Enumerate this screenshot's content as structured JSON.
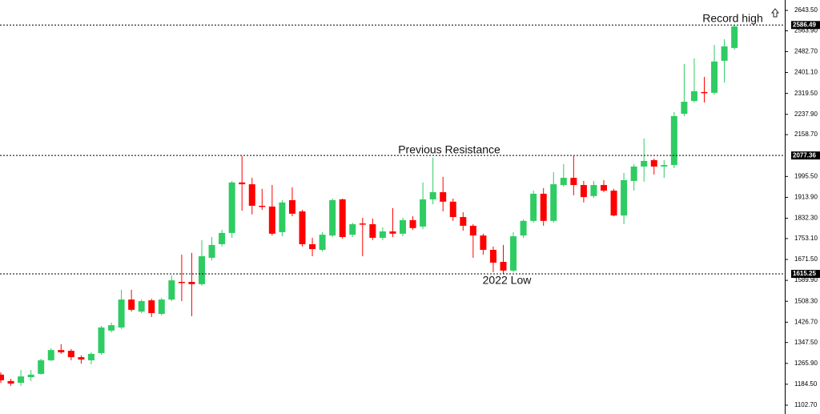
{
  "chart_data": {
    "type": "candlestick",
    "up_color": "#2ecc63",
    "down_color": "#ff0000",
    "ylim": [
      1102.7,
      2643.5
    ],
    "yticks": [
      {
        "value": 2643.5,
        "label": "2643.50"
      },
      {
        "value": 2563.9,
        "label": "2563.90"
      },
      {
        "value": 2482.7,
        "label": "2482.70"
      },
      {
        "value": 2401.1,
        "label": "2401.10"
      },
      {
        "value": 2319.5,
        "label": "2319.50"
      },
      {
        "value": 2237.9,
        "label": "2237.90"
      },
      {
        "value": 2158.7,
        "label": "2158.70"
      },
      {
        "value": 1995.5,
        "label": "1995.50"
      },
      {
        "value": 1913.9,
        "label": "1913.90"
      },
      {
        "value": 1832.3,
        "label": "1832.30"
      },
      {
        "value": 1753.1,
        "label": "1753.10"
      },
      {
        "value": 1671.5,
        "label": "1671.50"
      },
      {
        "value": 1589.9,
        "label": "1589.90"
      },
      {
        "value": 1508.3,
        "label": "1508.30"
      },
      {
        "value": 1426.7,
        "label": "1426.70"
      },
      {
        "value": 1347.5,
        "label": "1347.50"
      },
      {
        "value": 1265.9,
        "label": "1265.90"
      },
      {
        "value": 1184.5,
        "label": "1184.50"
      },
      {
        "value": 1102.7,
        "label": "1102.70"
      }
    ],
    "levels": [
      {
        "value": 2586.49,
        "annotation": "Record high"
      },
      {
        "value": 2077.36,
        "annotation": "Previous Resistance"
      },
      {
        "value": 1615.25,
        "annotation": "2022 Low"
      }
    ],
    "open": [
      1222,
      1197,
      1190,
      1212,
      1225,
      1278,
      1318,
      1315,
      1290,
      1278,
      1306,
      1394,
      1406,
      1515,
      1468,
      1512,
      1459,
      1515,
      1584,
      1584,
      1575,
      1678,
      1731,
      1775,
      1972,
      1965,
      1881,
      1878,
      1778,
      1903,
      1859,
      1731,
      1709,
      1765,
      1906,
      1768,
      1812,
      1809,
      1756,
      1781,
      1772,
      1825,
      1800,
      1906,
      1934,
      1897,
      1837,
      1803,
      1765,
      1709,
      1662,
      1628,
      1765,
      1822,
      1928,
      1822,
      1962,
      1990,
      1962,
      1919,
      1962,
      1940,
      1843,
      1978,
      2034,
      2059,
      2034,
      2040,
      2240,
      2290,
      2325,
      2322,
      2447,
      2497
    ],
    "close": [
      1200,
      1187,
      1215,
      1222,
      1278,
      1318,
      1309,
      1290,
      1281,
      1303,
      1406,
      1415,
      1515,
      1475,
      1509,
      1462,
      1515,
      1590,
      1581,
      1575,
      1684,
      1728,
      1775,
      1972,
      1965,
      1881,
      1878,
      1772,
      1894,
      1850,
      1731,
      1712,
      1768,
      1903,
      1759,
      1809,
      1809,
      1756,
      1781,
      1772,
      1825,
      1794,
      1906,
      1934,
      1897,
      1837,
      1803,
      1765,
      1709,
      1659,
      1628,
      1762,
      1822,
      1928,
      1822,
      1965,
      1990,
      1962,
      1915,
      1962,
      1940,
      1843,
      1981,
      2034,
      2056,
      2034,
      2040,
      2231,
      2287,
      2328,
      2322,
      2444,
      2503,
      2581
    ],
    "high": [
      1231,
      1206,
      1240,
      1240,
      1284,
      1325,
      1341,
      1322,
      1297,
      1309,
      1412,
      1425,
      1553,
      1553,
      1515,
      1518,
      1522,
      1609,
      1690,
      1697,
      1747,
      1759,
      1787,
      1978,
      2075,
      1990,
      1947,
      1962,
      1903,
      1953,
      1865,
      1756,
      1778,
      1909,
      1909,
      1815,
      1834,
      1831,
      1797,
      1872,
      1834,
      1840,
      1972,
      2069,
      1994,
      1909,
      1856,
      1809,
      1772,
      1722,
      1728,
      1778,
      1828,
      1940,
      1950,
      2012,
      2044,
      2075,
      1978,
      1978,
      1981,
      1947,
      2009,
      2044,
      2144,
      2065,
      2059,
      2247,
      2434,
      2456,
      2384,
      2509,
      2531,
      2587
    ],
    "low": [
      1190,
      1178,
      1178,
      1197,
      1222,
      1275,
      1303,
      1278,
      1265,
      1262,
      1300,
      1387,
      1400,
      1468,
      1462,
      1447,
      1453,
      1509,
      1509,
      1450,
      1569,
      1668,
      1722,
      1756,
      1862,
      1847,
      1865,
      1765,
      1762,
      1840,
      1722,
      1684,
      1703,
      1759,
      1753,
      1759,
      1684,
      1747,
      1747,
      1759,
      1762,
      1787,
      1790,
      1887,
      1859,
      1822,
      1784,
      1678,
      1690,
      1622,
      1615,
      1622,
      1756,
      1815,
      1803,
      1815,
      1956,
      1922,
      1894,
      1912,
      1934,
      1840,
      1809,
      1940,
      1975,
      2003,
      1990,
      2028,
      2231,
      2284,
      2284,
      2315,
      2362,
      2490
    ]
  }
}
